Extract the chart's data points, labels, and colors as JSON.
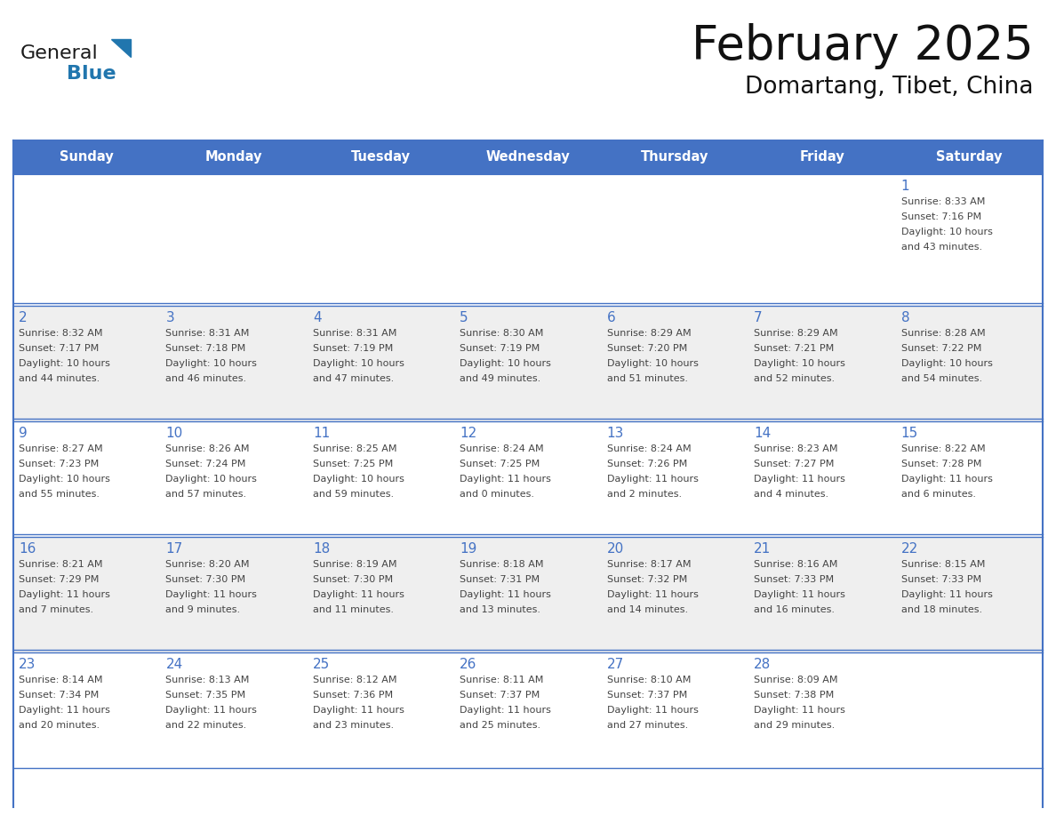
{
  "title": "February 2025",
  "subtitle": "Domartang, Tibet, China",
  "header_bg": "#4472C4",
  "header_text": "#FFFFFF",
  "header_days": [
    "Sunday",
    "Monday",
    "Tuesday",
    "Wednesday",
    "Thursday",
    "Friday",
    "Saturday"
  ],
  "alt_row_bg": "#EFEFEF",
  "white_bg": "#FFFFFF",
  "border_color": "#4472C4",
  "day_number_color": "#4472C4",
  "text_color": "#444444",
  "logo_general_color": "#1a1a1a",
  "logo_blue_color": "#2176AE",
  "calendar_data": [
    [
      null,
      null,
      null,
      null,
      null,
      null,
      {
        "day": 1,
        "sunrise": "8:33 AM",
        "sunset": "7:16 PM",
        "daylight_hours": 10,
        "daylight_minutes": 43
      }
    ],
    [
      {
        "day": 2,
        "sunrise": "8:32 AM",
        "sunset": "7:17 PM",
        "daylight_hours": 10,
        "daylight_minutes": 44
      },
      {
        "day": 3,
        "sunrise": "8:31 AM",
        "sunset": "7:18 PM",
        "daylight_hours": 10,
        "daylight_minutes": 46
      },
      {
        "day": 4,
        "sunrise": "8:31 AM",
        "sunset": "7:19 PM",
        "daylight_hours": 10,
        "daylight_minutes": 47
      },
      {
        "day": 5,
        "sunrise": "8:30 AM",
        "sunset": "7:19 PM",
        "daylight_hours": 10,
        "daylight_minutes": 49
      },
      {
        "day": 6,
        "sunrise": "8:29 AM",
        "sunset": "7:20 PM",
        "daylight_hours": 10,
        "daylight_minutes": 51
      },
      {
        "day": 7,
        "sunrise": "8:29 AM",
        "sunset": "7:21 PM",
        "daylight_hours": 10,
        "daylight_minutes": 52
      },
      {
        "day": 8,
        "sunrise": "8:28 AM",
        "sunset": "7:22 PM",
        "daylight_hours": 10,
        "daylight_minutes": 54
      }
    ],
    [
      {
        "day": 9,
        "sunrise": "8:27 AM",
        "sunset": "7:23 PM",
        "daylight_hours": 10,
        "daylight_minutes": 55
      },
      {
        "day": 10,
        "sunrise": "8:26 AM",
        "sunset": "7:24 PM",
        "daylight_hours": 10,
        "daylight_minutes": 57
      },
      {
        "day": 11,
        "sunrise": "8:25 AM",
        "sunset": "7:25 PM",
        "daylight_hours": 10,
        "daylight_minutes": 59
      },
      {
        "day": 12,
        "sunrise": "8:24 AM",
        "sunset": "7:25 PM",
        "daylight_hours": 11,
        "daylight_minutes": 0
      },
      {
        "day": 13,
        "sunrise": "8:24 AM",
        "sunset": "7:26 PM",
        "daylight_hours": 11,
        "daylight_minutes": 2
      },
      {
        "day": 14,
        "sunrise": "8:23 AM",
        "sunset": "7:27 PM",
        "daylight_hours": 11,
        "daylight_minutes": 4
      },
      {
        "day": 15,
        "sunrise": "8:22 AM",
        "sunset": "7:28 PM",
        "daylight_hours": 11,
        "daylight_minutes": 6
      }
    ],
    [
      {
        "day": 16,
        "sunrise": "8:21 AM",
        "sunset": "7:29 PM",
        "daylight_hours": 11,
        "daylight_minutes": 7
      },
      {
        "day": 17,
        "sunrise": "8:20 AM",
        "sunset": "7:30 PM",
        "daylight_hours": 11,
        "daylight_minutes": 9
      },
      {
        "day": 18,
        "sunrise": "8:19 AM",
        "sunset": "7:30 PM",
        "daylight_hours": 11,
        "daylight_minutes": 11
      },
      {
        "day": 19,
        "sunrise": "8:18 AM",
        "sunset": "7:31 PM",
        "daylight_hours": 11,
        "daylight_minutes": 13
      },
      {
        "day": 20,
        "sunrise": "8:17 AM",
        "sunset": "7:32 PM",
        "daylight_hours": 11,
        "daylight_minutes": 14
      },
      {
        "day": 21,
        "sunrise": "8:16 AM",
        "sunset": "7:33 PM",
        "daylight_hours": 11,
        "daylight_minutes": 16
      },
      {
        "day": 22,
        "sunrise": "8:15 AM",
        "sunset": "7:33 PM",
        "daylight_hours": 11,
        "daylight_minutes": 18
      }
    ],
    [
      {
        "day": 23,
        "sunrise": "8:14 AM",
        "sunset": "7:34 PM",
        "daylight_hours": 11,
        "daylight_minutes": 20
      },
      {
        "day": 24,
        "sunrise": "8:13 AM",
        "sunset": "7:35 PM",
        "daylight_hours": 11,
        "daylight_minutes": 22
      },
      {
        "day": 25,
        "sunrise": "8:12 AM",
        "sunset": "7:36 PM",
        "daylight_hours": 11,
        "daylight_minutes": 23
      },
      {
        "day": 26,
        "sunrise": "8:11 AM",
        "sunset": "7:37 PM",
        "daylight_hours": 11,
        "daylight_minutes": 25
      },
      {
        "day": 27,
        "sunrise": "8:10 AM",
        "sunset": "7:37 PM",
        "daylight_hours": 11,
        "daylight_minutes": 27
      },
      {
        "day": 28,
        "sunrise": "8:09 AM",
        "sunset": "7:38 PM",
        "daylight_hours": 11,
        "daylight_minutes": 29
      },
      null
    ]
  ],
  "num_rows": 5,
  "num_cols": 7
}
